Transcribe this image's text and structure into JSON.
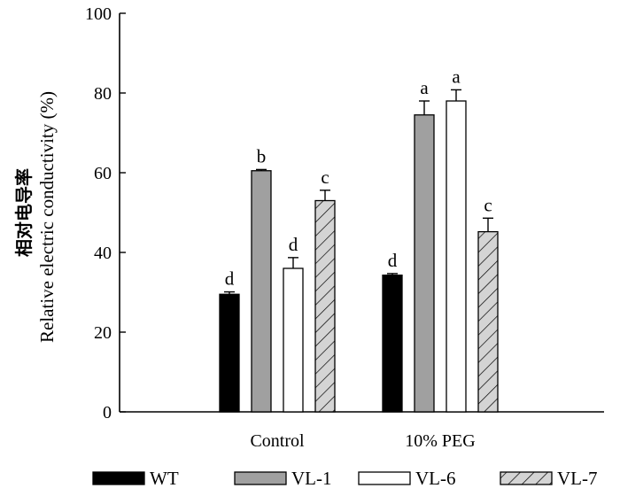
{
  "chart_data": {
    "type": "bar",
    "title": "",
    "xlabel": "",
    "ylabel_cn": "相对电导率",
    "ylabel": "Relative electric conductivity (%)",
    "categories": [
      "Control",
      "10% PEG"
    ],
    "ylim": [
      0,
      100
    ],
    "yticks": [
      0,
      20,
      40,
      60,
      80,
      100
    ],
    "grid": false,
    "legend_position": "bottom",
    "series": [
      {
        "name": "WT",
        "values": [
          29.5,
          34.3
        ],
        "errors": [
          0.6,
          0.4
        ],
        "labels": [
          "d",
          "d"
        ],
        "fill": "#000000",
        "pattern": "none"
      },
      {
        "name": "VL-1",
        "values": [
          60.5,
          74.5
        ],
        "errors": [
          0.3,
          3.5
        ],
        "labels": [
          "b",
          "a"
        ],
        "fill": "#a0a0a0",
        "pattern": "none"
      },
      {
        "name": "VL-6",
        "values": [
          36.0,
          78.0
        ],
        "errors": [
          2.7,
          2.8
        ],
        "labels": [
          "d",
          "a"
        ],
        "fill": "#ffffff",
        "pattern": "none"
      },
      {
        "name": "VL-7",
        "values": [
          53.0,
          45.2
        ],
        "errors": [
          2.6,
          3.4
        ],
        "labels": [
          "c",
          "c"
        ],
        "fill": "#d4d4d4",
        "pattern": "diagonal"
      }
    ]
  }
}
